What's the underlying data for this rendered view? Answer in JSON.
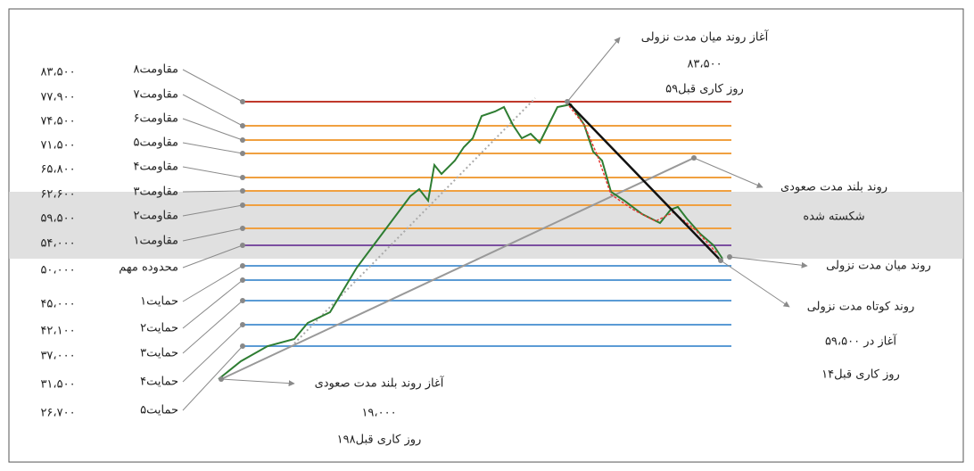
{
  "levels": [
    {
      "label": "مقاومت۸",
      "value": "۸۳،۵۰۰",
      "color": "#c0392b"
    },
    {
      "label": "مقاومت۷",
      "value": "۷۷،۹۰۰",
      "color": "#f0a040"
    },
    {
      "label": "مقاومت۶",
      "value": "۷۴،۵۰۰",
      "color": "#f0a040"
    },
    {
      "label": "مقاومت۵",
      "value": "۷۱،۵۰۰",
      "color": "#f0a040"
    },
    {
      "label": "مقاومت۴",
      "value": "۶۵،۸۰۰",
      "color": "#f0a040"
    },
    {
      "label": "مقاومت۳",
      "value": "۶۲،۶۰۰",
      "color": "#f0a040"
    },
    {
      "label": "مقاومت۲",
      "value": "۵۹،۵۰۰",
      "color": "#f0a040"
    },
    {
      "label": "مقاومت۱",
      "value": "۵۴،۰۰۰",
      "color": "#f0a040"
    },
    {
      "label": "محدوده مهم",
      "value": "۵۰،۰۰۰",
      "color": "#7b4fa0"
    },
    {
      "label": "حمایت۱",
      "value": "۴۵،۰۰۰",
      "color": "#5b9bd5"
    },
    {
      "label": "حمایت۲",
      "value": "۴۲،۱۰۰",
      "color": "#5b9bd5"
    },
    {
      "label": "حمایت۳",
      "value": "۳۷،۰۰۰",
      "color": "#5b9bd5"
    },
    {
      "label": "حمایت۴",
      "value": "۳۱،۵۰۰",
      "color": "#5b9bd5"
    },
    {
      "label": "حمایت۵",
      "value": "۲۶،۷۰۰",
      "color": "#5b9bd5"
    }
  ],
  "annotations": {
    "mid_down_start": [
      "آغاز روند میان مدت نزولی",
      "۸۳،۵۰۰",
      "۵۹روز کاری قبل"
    ],
    "long_up_broken": [
      "روند بلند مدت صعودی",
      "شکسته شده"
    ],
    "mid_down": [
      "روند میان مدت نزولی"
    ],
    "short_down": [
      "روند کوتاه مدت نزولی",
      "آغاز در ۵۹،۵۰۰",
      "۱۴روز کاری قبل"
    ],
    "long_up_start": [
      "آغاز روند بلند مدت صعودی",
      "۱۹،۰۰۰",
      "۱۹۸روز کاری قبل"
    ]
  }
}
